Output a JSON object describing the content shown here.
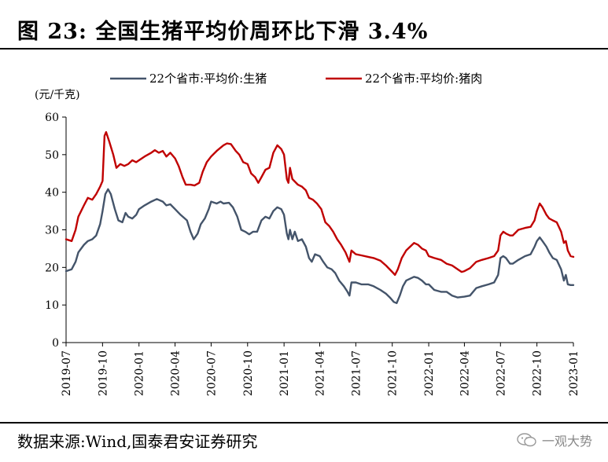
{
  "header": {
    "title": "图 23:  全国生猪平均价周环比下滑 3.4%"
  },
  "footer": {
    "source": "数据来源:Wind,国泰君安证券研究",
    "watermark": "一观大势"
  },
  "chart_data": {
    "type": "line",
    "ylabel": "(元/千克)",
    "ylim": [
      0,
      60
    ],
    "yticks": [
      0,
      10,
      20,
      30,
      40,
      50,
      60
    ],
    "xlim": [
      "2019-07",
      "2023-01"
    ],
    "xticks": [
      "2019-07",
      "2019-10",
      "2020-01",
      "2020-04",
      "2020-07",
      "2020-10",
      "2021-01",
      "2021-04",
      "2021-07",
      "2021-10",
      "2022-01",
      "2022-04",
      "2022-07",
      "2022-10",
      "2023-01"
    ],
    "grid": false,
    "legend_position": "top",
    "series": [
      {
        "name": "22个省市:平均价:生猪",
        "color": "#44546A",
        "points": [
          [
            "2019-07",
            19.0
          ],
          [
            "2019-07-15",
            19.5
          ],
          [
            "2019-07-25",
            21.5
          ],
          [
            "2019-08",
            24.0
          ],
          [
            "2019-08-15",
            26.0
          ],
          [
            "2019-08-25",
            27.0
          ],
          [
            "2019-09-05",
            27.5
          ],
          [
            "2019-09-15",
            28.5
          ],
          [
            "2019-09-25",
            31.5
          ],
          [
            "2019-10",
            35.0
          ],
          [
            "2019-10-08",
            39.5
          ],
          [
            "2019-10-15",
            40.8
          ],
          [
            "2019-10-22",
            39.5
          ],
          [
            "2019-11",
            35.5
          ],
          [
            "2019-11-10",
            32.5
          ],
          [
            "2019-11-20",
            32.0
          ],
          [
            "2019-11-28",
            34.5
          ],
          [
            "2019-12-05",
            33.5
          ],
          [
            "2019-12-15",
            33.0
          ],
          [
            "2019-12-25",
            34.0
          ],
          [
            "2020-01",
            35.5
          ],
          [
            "2020-01-15",
            36.5
          ],
          [
            "2020-02",
            37.5
          ],
          [
            "2020-02-15",
            38.2
          ],
          [
            "2020-03",
            37.5
          ],
          [
            "2020-03-10",
            36.5
          ],
          [
            "2020-03-20",
            36.8
          ],
          [
            "2020-04",
            35.5
          ],
          [
            "2020-04-15",
            34.0
          ],
          [
            "2020-05",
            32.5
          ],
          [
            "2020-05-10",
            29.5
          ],
          [
            "2020-05-18",
            27.5
          ],
          [
            "2020-05-28",
            29.0
          ],
          [
            "2020-06-05",
            31.5
          ],
          [
            "2020-06-15",
            33.0
          ],
          [
            "2020-06-25",
            35.5
          ],
          [
            "2020-07",
            37.5
          ],
          [
            "2020-07-15",
            37.0
          ],
          [
            "2020-07-25",
            37.5
          ],
          [
            "2020-08",
            37.0
          ],
          [
            "2020-08-15",
            37.2
          ],
          [
            "2020-08-25",
            36.0
          ],
          [
            "2020-09-05",
            33.5
          ],
          [
            "2020-09-15",
            30.0
          ],
          [
            "2020-09-25",
            29.5
          ],
          [
            "2020-10-05",
            28.8
          ],
          [
            "2020-10-15",
            29.5
          ],
          [
            "2020-10-25",
            29.5
          ],
          [
            "2020-11-05",
            32.5
          ],
          [
            "2020-11-15",
            33.5
          ],
          [
            "2020-11-25",
            33.0
          ],
          [
            "2020-12-05",
            35.0
          ],
          [
            "2020-12-15",
            36.0
          ],
          [
            "2020-12-25",
            35.5
          ],
          [
            "2021-01",
            34.0
          ],
          [
            "2021-01-08",
            29.0
          ],
          [
            "2021-01-12",
            27.5
          ],
          [
            "2021-01-16",
            30.0
          ],
          [
            "2021-01-22",
            27.5
          ],
          [
            "2021-01-28",
            29.5
          ],
          [
            "2021-02-05",
            27.0
          ],
          [
            "2021-02-15",
            27.5
          ],
          [
            "2021-02-25",
            25.5
          ],
          [
            "2021-03-05",
            22.5
          ],
          [
            "2021-03-12",
            21.5
          ],
          [
            "2021-03-20",
            23.5
          ],
          [
            "2021-04",
            23.0
          ],
          [
            "2021-04-10",
            21.5
          ],
          [
            "2021-04-20",
            20.0
          ],
          [
            "2021-05",
            19.5
          ],
          [
            "2021-05-10",
            18.5
          ],
          [
            "2021-05-20",
            16.5
          ],
          [
            "2021-06",
            15.0
          ],
          [
            "2021-06-10",
            13.5
          ],
          [
            "2021-06-15",
            12.5
          ],
          [
            "2021-06-20",
            16.0
          ],
          [
            "2021-07",
            16.0
          ],
          [
            "2021-07-15",
            15.5
          ],
          [
            "2021-08",
            15.5
          ],
          [
            "2021-08-15",
            15.0
          ],
          [
            "2021-09",
            14.0
          ],
          [
            "2021-09-15",
            13.0
          ],
          [
            "2021-09-25",
            12.0
          ],
          [
            "2021-10-05",
            10.8
          ],
          [
            "2021-10-12",
            10.5
          ],
          [
            "2021-10-20",
            12.5
          ],
          [
            "2021-10-28",
            15.0
          ],
          [
            "2021-11-05",
            16.5
          ],
          [
            "2021-11-15",
            17.0
          ],
          [
            "2021-11-25",
            17.5
          ],
          [
            "2021-12-05",
            17.2
          ],
          [
            "2021-12-15",
            16.5
          ],
          [
            "2021-12-25",
            15.5
          ],
          [
            "2022-01",
            15.5
          ],
          [
            "2022-01-15",
            14.0
          ],
          [
            "2022-02",
            13.5
          ],
          [
            "2022-02-15",
            13.5
          ],
          [
            "2022-03",
            12.5
          ],
          [
            "2022-03-15",
            12.0
          ],
          [
            "2022-04",
            12.2
          ],
          [
            "2022-04-15",
            12.5
          ],
          [
            "2022-05",
            14.5
          ],
          [
            "2022-05-15",
            15.0
          ],
          [
            "2022-06",
            15.5
          ],
          [
            "2022-06-15",
            16.0
          ],
          [
            "2022-06-25",
            18.0
          ],
          [
            "2022-07",
            22.5
          ],
          [
            "2022-07-08",
            23.0
          ],
          [
            "2022-07-15",
            22.5
          ],
          [
            "2022-07-25",
            21.0
          ],
          [
            "2022-08",
            21.0
          ],
          [
            "2022-08-15",
            22.0
          ],
          [
            "2022-09",
            23.0
          ],
          [
            "2022-09-15",
            23.5
          ],
          [
            "2022-09-25",
            25.5
          ],
          [
            "2022-10",
            27.0
          ],
          [
            "2022-10-08",
            28.0
          ],
          [
            "2022-10-15",
            27.0
          ],
          [
            "2022-10-25",
            25.5
          ],
          [
            "2022-11",
            24.0
          ],
          [
            "2022-11-10",
            22.5
          ],
          [
            "2022-11-20",
            22.0
          ],
          [
            "2022-12",
            19.5
          ],
          [
            "2022-12-08",
            16.5
          ],
          [
            "2022-12-13",
            18.0
          ],
          [
            "2022-12-18",
            15.5
          ],
          [
            "2022-12-25",
            15.3
          ],
          [
            "2023-01",
            15.3
          ]
        ]
      },
      {
        "name": "22个省市:平均价:猪肉",
        "color": "#C00000",
        "points": [
          [
            "2019-07",
            27.5
          ],
          [
            "2019-07-15",
            27.0
          ],
          [
            "2019-07-25",
            30.0
          ],
          [
            "2019-08",
            33.5
          ],
          [
            "2019-08-15",
            36.5
          ],
          [
            "2019-08-25",
            38.5
          ],
          [
            "2019-09-05",
            38.0
          ],
          [
            "2019-09-15",
            39.5
          ],
          [
            "2019-09-25",
            41.5
          ],
          [
            "2019-10",
            43.0
          ],
          [
            "2019-10-06",
            55.0
          ],
          [
            "2019-10-10",
            56.0
          ],
          [
            "2019-10-18",
            53.5
          ],
          [
            "2019-10-28",
            50.0
          ],
          [
            "2019-11-05",
            46.5
          ],
          [
            "2019-11-15",
            47.5
          ],
          [
            "2019-11-25",
            47.0
          ],
          [
            "2019-12-05",
            47.5
          ],
          [
            "2019-12-15",
            48.5
          ],
          [
            "2019-12-25",
            48.0
          ],
          [
            "2020-01",
            48.5
          ],
          [
            "2020-01-15",
            49.5
          ],
          [
            "2020-02",
            50.5
          ],
          [
            "2020-02-10",
            51.2
          ],
          [
            "2020-02-20",
            50.5
          ],
          [
            "2020-03",
            51.0
          ],
          [
            "2020-03-10",
            49.5
          ],
          [
            "2020-03-20",
            50.5
          ],
          [
            "2020-04",
            49.0
          ],
          [
            "2020-04-10",
            47.0
          ],
          [
            "2020-04-20",
            44.0
          ],
          [
            "2020-04-28",
            42.0
          ],
          [
            "2020-05-10",
            42.0
          ],
          [
            "2020-05-20",
            41.8
          ],
          [
            "2020-06",
            42.5
          ],
          [
            "2020-06-10",
            45.5
          ],
          [
            "2020-06-20",
            48.0
          ],
          [
            "2020-07",
            49.5
          ],
          [
            "2020-07-15",
            51.0
          ],
          [
            "2020-08",
            52.5
          ],
          [
            "2020-08-10",
            53.0
          ],
          [
            "2020-08-20",
            52.8
          ],
          [
            "2020-09",
            51.0
          ],
          [
            "2020-09-10",
            50.0
          ],
          [
            "2020-09-20",
            48.0
          ],
          [
            "2020-10",
            47.5
          ],
          [
            "2020-10-10",
            45.0
          ],
          [
            "2020-10-20",
            44.0
          ],
          [
            "2020-10-28",
            42.5
          ],
          [
            "2020-11-05",
            44.0
          ],
          [
            "2020-11-15",
            46.0
          ],
          [
            "2020-11-25",
            46.5
          ],
          [
            "2020-12-05",
            50.5
          ],
          [
            "2020-12-15",
            52.5
          ],
          [
            "2020-12-25",
            51.5
          ],
          [
            "2021-01",
            50.0
          ],
          [
            "2021-01-08",
            43.5
          ],
          [
            "2021-01-12",
            42.5
          ],
          [
            "2021-01-16",
            46.5
          ],
          [
            "2021-01-22",
            43.5
          ],
          [
            "2021-02-05",
            42.0
          ],
          [
            "2021-02-15",
            41.5
          ],
          [
            "2021-02-25",
            40.5
          ],
          [
            "2021-03-05",
            38.5
          ],
          [
            "2021-03-15",
            38.0
          ],
          [
            "2021-03-25",
            37.0
          ],
          [
            "2021-04-05",
            35.5
          ],
          [
            "2021-04-15",
            32.0
          ],
          [
            "2021-04-25",
            31.0
          ],
          [
            "2021-05-05",
            29.5
          ],
          [
            "2021-05-15",
            27.5
          ],
          [
            "2021-05-25",
            26.0
          ],
          [
            "2021-06-05",
            24.0
          ],
          [
            "2021-06-15",
            21.5
          ],
          [
            "2021-06-20",
            24.5
          ],
          [
            "2021-07",
            23.5
          ],
          [
            "2021-07-15",
            23.2
          ],
          [
            "2021-08",
            22.8
          ],
          [
            "2021-08-15",
            22.5
          ],
          [
            "2021-09",
            21.8
          ],
          [
            "2021-09-15",
            20.5
          ],
          [
            "2021-10",
            18.8
          ],
          [
            "2021-10-08",
            18.0
          ],
          [
            "2021-10-15",
            19.5
          ],
          [
            "2021-10-25",
            22.5
          ],
          [
            "2021-11-05",
            24.5
          ],
          [
            "2021-11-15",
            25.5
          ],
          [
            "2021-11-25",
            26.5
          ],
          [
            "2021-12-05",
            26.0
          ],
          [
            "2021-12-15",
            25.0
          ],
          [
            "2021-12-25",
            24.5
          ],
          [
            "2022-01",
            23.0
          ],
          [
            "2022-01-15",
            22.5
          ],
          [
            "2022-02",
            22.0
          ],
          [
            "2022-02-15",
            21.0
          ],
          [
            "2022-03",
            20.5
          ],
          [
            "2022-03-15",
            19.5
          ],
          [
            "2022-03-25",
            18.8
          ],
          [
            "2022-04",
            19.0
          ],
          [
            "2022-04-15",
            19.8
          ],
          [
            "2022-05",
            21.5
          ],
          [
            "2022-05-15",
            22.0
          ],
          [
            "2022-06",
            22.5
          ],
          [
            "2022-06-15",
            23.0
          ],
          [
            "2022-06-25",
            24.5
          ],
          [
            "2022-07",
            28.5
          ],
          [
            "2022-07-08",
            29.5
          ],
          [
            "2022-07-15",
            29.0
          ],
          [
            "2022-07-25",
            28.5
          ],
          [
            "2022-08",
            28.5
          ],
          [
            "2022-08-15",
            30.0
          ],
          [
            "2022-09",
            30.5
          ],
          [
            "2022-09-15",
            30.8
          ],
          [
            "2022-09-25",
            32.5
          ],
          [
            "2022-10",
            35.0
          ],
          [
            "2022-10-08",
            37.0
          ],
          [
            "2022-10-15",
            36.0
          ],
          [
            "2022-10-25",
            34.0
          ],
          [
            "2022-11",
            33.0
          ],
          [
            "2022-11-10",
            32.5
          ],
          [
            "2022-11-20",
            32.0
          ],
          [
            "2022-12",
            29.5
          ],
          [
            "2022-12-08",
            26.5
          ],
          [
            "2022-12-13",
            27.0
          ],
          [
            "2022-12-18",
            24.5
          ],
          [
            "2022-12-25",
            23.0
          ],
          [
            "2023-01",
            22.8
          ]
        ]
      }
    ]
  }
}
